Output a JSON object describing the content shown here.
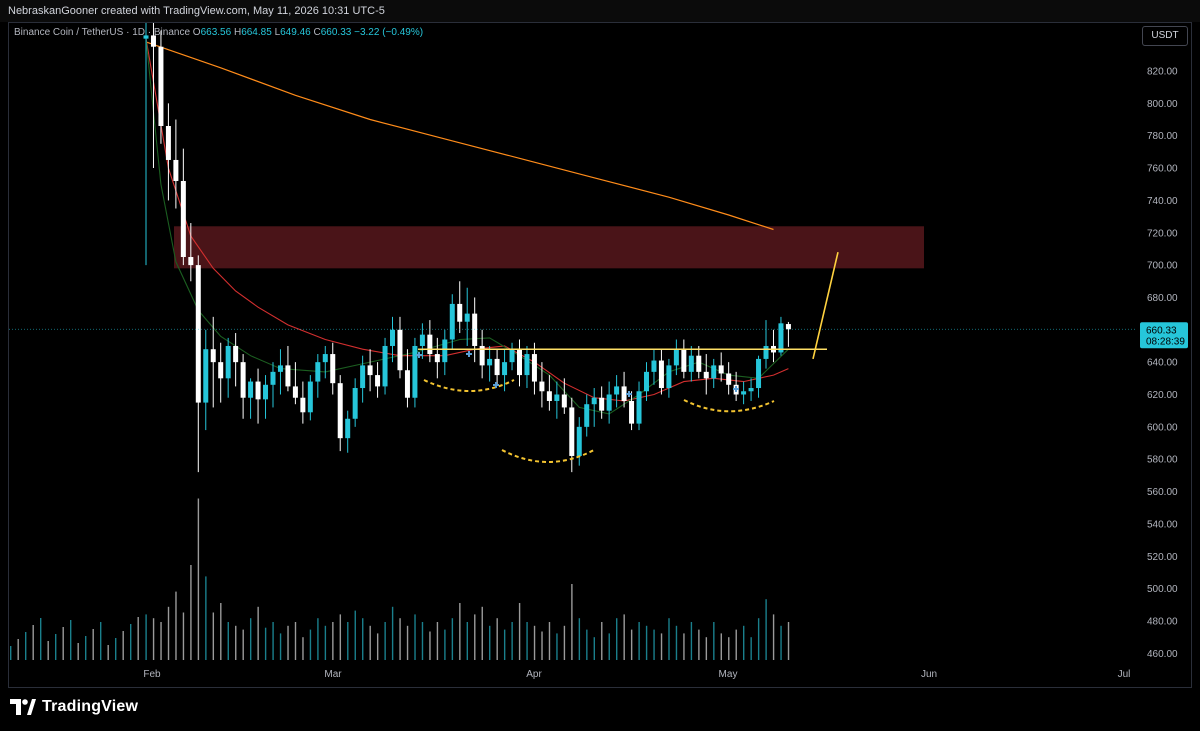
{
  "header": {
    "attribution": "NebraskanGooner created with TradingView.com, May 11, 2026 10:31 UTC-5"
  },
  "legend": {
    "symbol": "Binance Coin / TetherUS · 1D · Binance",
    "open_label": "O",
    "open": "663.56",
    "high_label": "H",
    "high": "664.85",
    "low_label": "L",
    "low": "649.46",
    "close_label": "C",
    "close": "660.33",
    "change": "−3.22 (−0.49%)"
  },
  "currency_button": "USDT",
  "last_price": {
    "value": "660.33",
    "countdown": "08:28:39"
  },
  "brand": {
    "name": "TradingView"
  },
  "colors": {
    "up": "#26c6da",
    "down": "#ffffff",
    "resistance_zone": "#4a1418",
    "ma_slow": "#ff8c1a",
    "ma_mid": "#d32f2f",
    "ma_fast": "#1b5e20",
    "support": "#ffe066",
    "projection": "#ffd23f",
    "pattern": "#f4c430"
  },
  "chart_data": {
    "type": "candlestick",
    "y_axis": {
      "ticks": [
        820,
        800,
        780,
        760,
        740,
        720,
        700,
        680,
        660,
        640,
        620,
        600,
        580,
        560,
        540,
        520,
        500,
        480,
        460
      ],
      "side": "right"
    },
    "x_axis": {
      "ticks": [
        "Feb",
        "Mar",
        "Apr",
        "May",
        "Jun",
        "Jul"
      ]
    },
    "grid": false,
    "candles": [
      [
        840,
        870,
        700,
        842
      ],
      [
        842,
        858,
        760,
        835
      ],
      [
        835,
        845,
        775,
        786
      ],
      [
        786,
        800,
        740,
        765
      ],
      [
        765,
        790,
        735,
        752
      ],
      [
        752,
        772,
        700,
        705
      ],
      [
        705,
        726,
        690,
        700
      ],
      [
        700,
        706,
        572,
        615
      ],
      [
        615,
        660,
        598,
        648
      ],
      [
        648,
        668,
        612,
        640
      ],
      [
        640,
        652,
        615,
        630
      ],
      [
        630,
        655,
        618,
        650
      ],
      [
        650,
        658,
        625,
        640
      ],
      [
        640,
        645,
        605,
        618
      ],
      [
        618,
        630,
        605,
        628
      ],
      [
        628,
        636,
        602,
        617
      ],
      [
        617,
        632,
        605,
        626
      ],
      [
        626,
        640,
        612,
        634
      ],
      [
        634,
        648,
        620,
        638
      ],
      [
        638,
        650,
        622,
        625
      ],
      [
        625,
        640,
        614,
        618
      ],
      [
        618,
        628,
        602,
        609
      ],
      [
        609,
        632,
        604,
        628
      ],
      [
        628,
        645,
        618,
        640
      ],
      [
        640,
        650,
        630,
        645
      ],
      [
        645,
        652,
        620,
        627
      ],
      [
        627,
        632,
        585,
        593
      ],
      [
        593,
        610,
        584,
        605
      ],
      [
        605,
        630,
        600,
        624
      ],
      [
        624,
        644,
        615,
        638
      ],
      [
        638,
        648,
        622,
        632
      ],
      [
        632,
        640,
        618,
        625
      ],
      [
        625,
        655,
        620,
        650
      ],
      [
        650,
        668,
        640,
        660
      ],
      [
        660,
        668,
        630,
        635
      ],
      [
        635,
        648,
        612,
        618
      ],
      [
        618,
        655,
        612,
        650
      ],
      [
        650,
        664,
        642,
        657
      ],
      [
        657,
        666,
        640,
        645
      ],
      [
        645,
        655,
        630,
        640
      ],
      [
        640,
        660,
        632,
        654
      ],
      [
        654,
        682,
        648,
        676
      ],
      [
        676,
        690,
        658,
        665
      ],
      [
        665,
        686,
        650,
        670
      ],
      [
        670,
        680,
        640,
        650
      ],
      [
        650,
        660,
        630,
        638
      ],
      [
        638,
        650,
        628,
        642
      ],
      [
        642,
        648,
        626,
        632
      ],
      [
        632,
        648,
        622,
        640
      ],
      [
        640,
        652,
        635,
        648
      ],
      [
        648,
        654,
        625,
        632
      ],
      [
        632,
        650,
        624,
        645
      ],
      [
        645,
        652,
        620,
        628
      ],
      [
        628,
        640,
        612,
        622
      ],
      [
        622,
        632,
        610,
        616
      ],
      [
        616,
        628,
        605,
        620
      ],
      [
        620,
        630,
        608,
        612
      ],
      [
        612,
        618,
        572,
        582
      ],
      [
        582,
        606,
        576,
        600
      ],
      [
        600,
        620,
        594,
        614
      ],
      [
        614,
        624,
        600,
        618
      ],
      [
        618,
        625,
        605,
        610
      ],
      [
        610,
        628,
        602,
        620
      ],
      [
        620,
        632,
        612,
        625
      ],
      [
        625,
        634,
        612,
        616
      ],
      [
        616,
        622,
        598,
        602
      ],
      [
        602,
        628,
        598,
        622
      ],
      [
        622,
        640,
        616,
        634
      ],
      [
        634,
        648,
        626,
        641
      ],
      [
        641,
        648,
        620,
        624
      ],
      [
        624,
        642,
        618,
        638
      ],
      [
        638,
        654,
        632,
        648
      ],
      [
        648,
        654,
        630,
        634
      ],
      [
        634,
        650,
        628,
        644
      ],
      [
        644,
        650,
        630,
        634
      ],
      [
        634,
        645,
        620,
        630
      ],
      [
        630,
        642,
        624,
        638
      ],
      [
        638,
        646,
        628,
        633
      ],
      [
        633,
        640,
        620,
        626
      ],
      [
        626,
        634,
        616,
        620
      ],
      [
        620,
        628,
        614,
        622
      ],
      [
        622,
        630,
        616,
        624
      ],
      [
        624,
        644,
        618,
        642
      ],
      [
        642,
        666,
        636,
        650
      ],
      [
        650,
        660,
        640,
        646
      ],
      [
        646,
        668,
        644,
        664
      ],
      [
        663.56,
        664.85,
        649.46,
        660.33
      ]
    ],
    "volume_relative": [
      0.24,
      0.22,
      0.2,
      0.28,
      0.36,
      0.25,
      0.5,
      0.85,
      0.44,
      0.25,
      0.3,
      0.2,
      0.18,
      0.16,
      0.22,
      0.28,
      0.17,
      0.2,
      0.14,
      0.18,
      0.2,
      0.12,
      0.16,
      0.22,
      0.18,
      0.2,
      0.24,
      0.2,
      0.26,
      0.22,
      0.18,
      0.14,
      0.2,
      0.28,
      0.22,
      0.18,
      0.24,
      0.2,
      0.15,
      0.2,
      0.16,
      0.22,
      0.3,
      0.2,
      0.24,
      0.28,
      0.18,
      0.22,
      0.16,
      0.2,
      0.3,
      0.2,
      0.18,
      0.15,
      0.2,
      0.14,
      0.18,
      0.4,
      0.22,
      0.16,
      0.12,
      0.2,
      0.14,
      0.22,
      0.24,
      0.16,
      0.2,
      0.18,
      0.16,
      0.14,
      0.22,
      0.18,
      0.14,
      0.2,
      0.16,
      0.12,
      0.2,
      0.14,
      0.12,
      0.16,
      0.18,
      0.12,
      0.22,
      0.32,
      0.24,
      0.18,
      0.2
    ],
    "ema_slow": [
      [
        0,
        838
      ],
      [
        10,
        822
      ],
      [
        20,
        805
      ],
      [
        30,
        790
      ],
      [
        40,
        778
      ],
      [
        50,
        766
      ],
      [
        60,
        754
      ],
      [
        70,
        742
      ],
      [
        78,
        731
      ],
      [
        84,
        722
      ]
    ],
    "ema_mid": [
      [
        0,
        840
      ],
      [
        3,
        760
      ],
      [
        6,
        718
      ],
      [
        9,
        698
      ],
      [
        12,
        684
      ],
      [
        15,
        674
      ],
      [
        19,
        663
      ],
      [
        24,
        654
      ],
      [
        29,
        648
      ],
      [
        34,
        644
      ],
      [
        40,
        644
      ],
      [
        44,
        648
      ],
      [
        48,
        650
      ],
      [
        52,
        640
      ],
      [
        56,
        627
      ],
      [
        60,
        618
      ],
      [
        64,
        616
      ],
      [
        68,
        620
      ],
      [
        72,
        628
      ],
      [
        76,
        630
      ],
      [
        80,
        628
      ],
      [
        84,
        632
      ],
      [
        86,
        636
      ]
    ],
    "ema_fast": [
      [
        0,
        840
      ],
      [
        2,
        750
      ],
      [
        4,
        702
      ],
      [
        7,
        672
      ],
      [
        10,
        656
      ],
      [
        14,
        644
      ],
      [
        18,
        636
      ],
      [
        24,
        634
      ],
      [
        30,
        640
      ],
      [
        36,
        646
      ],
      [
        42,
        654
      ],
      [
        46,
        655
      ],
      [
        50,
        644
      ],
      [
        54,
        632
      ],
      [
        58,
        612
      ],
      [
        62,
        608
      ],
      [
        66,
        620
      ],
      [
        70,
        634
      ],
      [
        74,
        640
      ],
      [
        78,
        632
      ],
      [
        82,
        630
      ],
      [
        86,
        648
      ]
    ],
    "resistance_zone": {
      "y_top": 724,
      "y_bottom": 698
    },
    "neckline": 648,
    "last_close": 660.33
  }
}
